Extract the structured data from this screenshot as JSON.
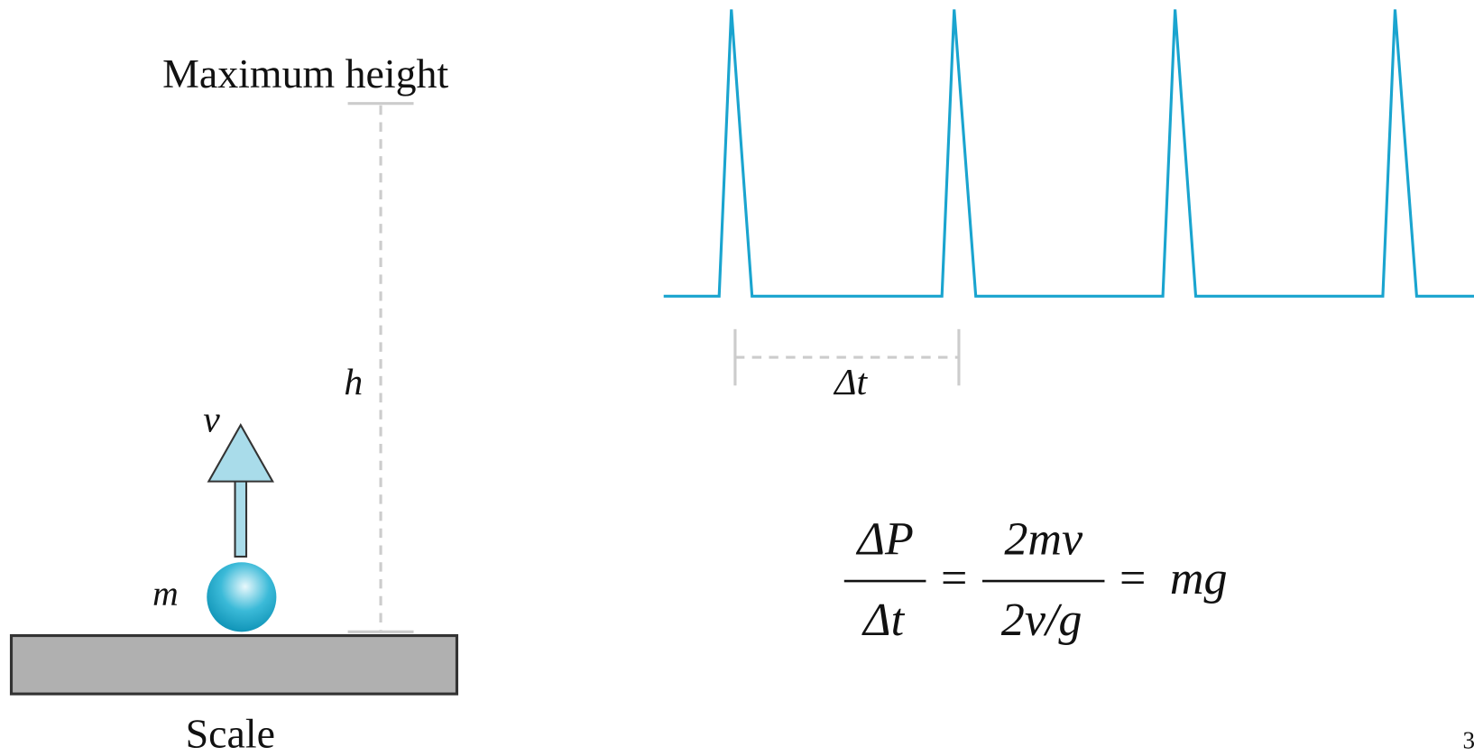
{
  "labels": {
    "maximum_height": "Maximum height",
    "height": "h",
    "velocity": "v",
    "mass": "m",
    "scale": "Scale",
    "interval": "Δt"
  },
  "equation": {
    "numerator_1": "ΔP",
    "denominator_1": "Δt",
    "equals_1": "=",
    "numerator_2": "2mv",
    "denominator_2": "2v/g",
    "equals_2": "=",
    "result": "mg"
  },
  "page_number": "3"
}
